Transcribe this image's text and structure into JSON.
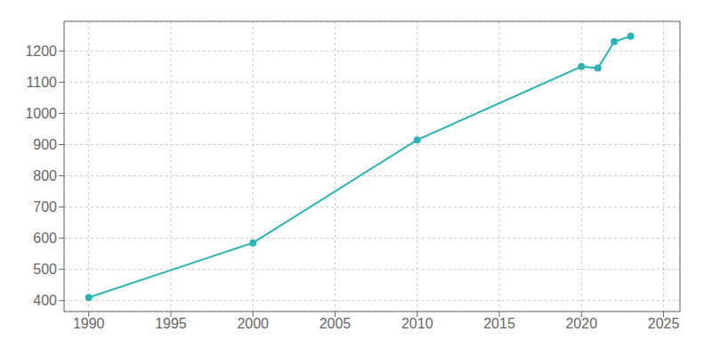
{
  "chart_data": {
    "type": "line",
    "x": [
      1990,
      2000,
      2010,
      2020,
      2021,
      2022,
      2023
    ],
    "values": [
      410,
      585,
      915,
      1150,
      1145,
      1230,
      1247
    ],
    "color": "#2ab5b5",
    "marker": "circle",
    "xlim": [
      1988.5,
      2026
    ],
    "xticks": [
      1990,
      1995,
      2000,
      2005,
      2010,
      2015,
      2020,
      2025
    ],
    "ylim": [
      365,
      1295
    ],
    "yticks": [
      400,
      500,
      600,
      700,
      800,
      900,
      1000,
      1100,
      1200
    ],
    "grid": true
  }
}
